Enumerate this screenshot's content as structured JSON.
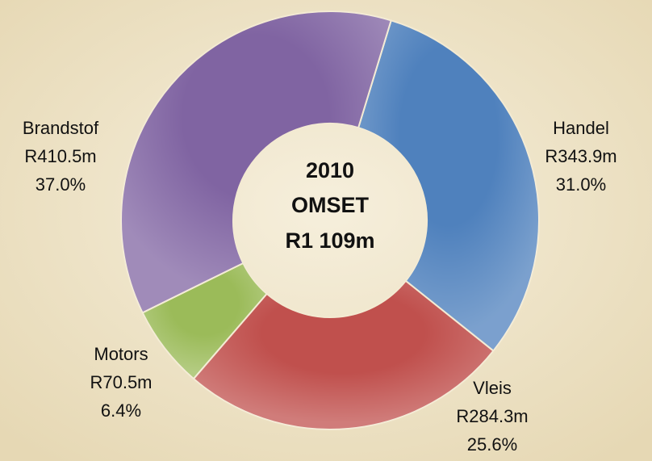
{
  "chart_data": {
    "type": "donut",
    "center_text": [
      "2010",
      "OMSET",
      "R1 109m"
    ],
    "categories": [
      "Handel",
      "Vleis",
      "Motors",
      "Brandstof"
    ],
    "revenue_labels": [
      "R343.9m",
      "R284.3m",
      "R70.5m",
      "R410.5m"
    ],
    "values": [
      31.0,
      25.6,
      6.4,
      37.0
    ],
    "value_labels": [
      "31.0%",
      "25.6%",
      "6.4%",
      "37.0%"
    ],
    "colors": [
      "#4f81bd",
      "#c0504d",
      "#9bbb59",
      "#8064a2"
    ]
  }
}
